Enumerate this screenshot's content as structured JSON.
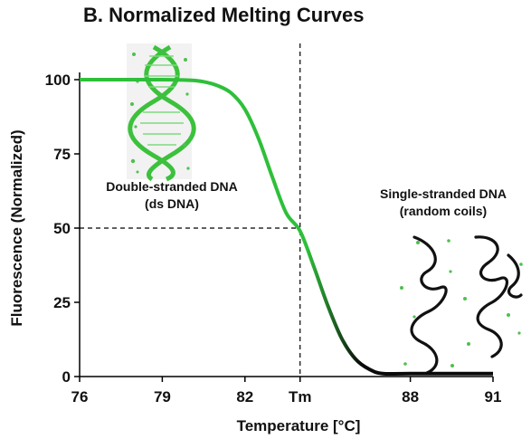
{
  "chart_data": {
    "type": "line",
    "title": "B.   Normalized Melting Curves",
    "xlabel": "Temperature  [°C]",
    "ylabel": "Fluorescence (Normalized)",
    "xlim": [
      76,
      91
    ],
    "ylim": [
      0,
      100
    ],
    "x_ticks": [
      {
        "value": 76,
        "label": "76"
      },
      {
        "value": 79,
        "label": "79"
      },
      {
        "value": 82,
        "label": "82"
      },
      {
        "value": 84,
        "label": "Tm"
      },
      {
        "value": 88,
        "label": "88"
      },
      {
        "value": 91,
        "label": "91"
      }
    ],
    "y_ticks": [
      {
        "value": 0,
        "label": "0"
      },
      {
        "value": 25,
        "label": "25"
      },
      {
        "value": 50,
        "label": "50"
      },
      {
        "value": 75,
        "label": "75"
      },
      {
        "value": 100,
        "label": "100"
      }
    ],
    "series": [
      {
        "x": [
          76.0,
          79.0,
          80.0,
          80.5,
          81.0,
          81.5,
          82.0,
          82.5,
          83.0,
          83.5,
          84.0,
          84.5,
          85.0,
          85.5,
          86.0,
          86.5,
          87.0,
          88.0,
          91.0
        ],
        "y": [
          100,
          100,
          99.8,
          99.3,
          98,
          95.5,
          90,
          80,
          67,
          55,
          49,
          37,
          24,
          13,
          6,
          2.5,
          1,
          1,
          1
        ]
      }
    ],
    "tm": {
      "x": 84,
      "y": 50
    },
    "colors": {
      "high": "#2fbf3a",
      "low": "#0a0a0a",
      "axis": "#000000"
    },
    "grid": false
  },
  "annotations": {
    "ds_line1": "Double-stranded DNA",
    "ds_line2": "(ds DNA)",
    "ss_line1": "Single-stranded DNA",
    "ss_line2": "(random coils)"
  },
  "icons": [
    "dna-double-helix-icon",
    "random-coil-strands-icon"
  ]
}
